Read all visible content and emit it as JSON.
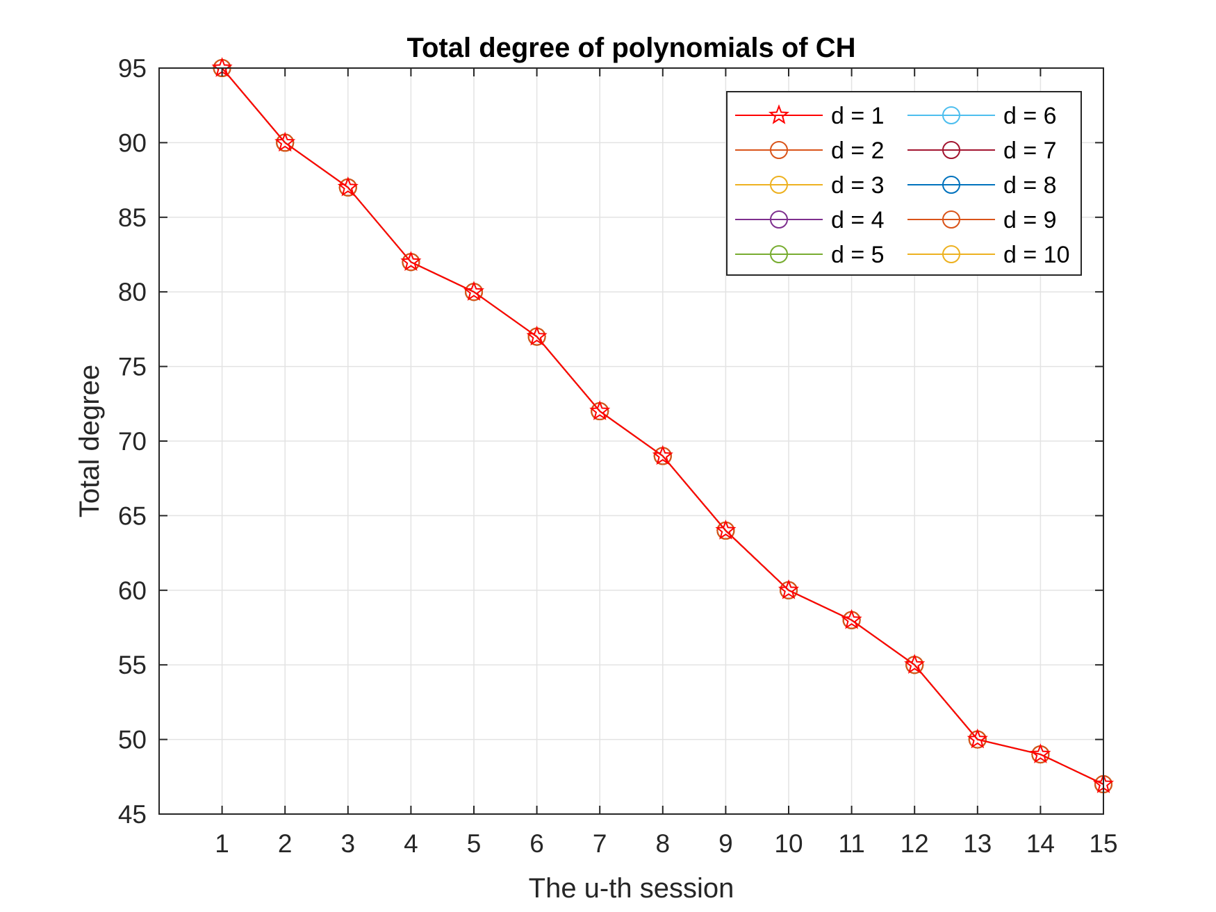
{
  "chart_data": {
    "type": "line",
    "title": "Total degree of polynomials of CH",
    "xlabel": "The u-th session",
    "ylabel": "Total degree",
    "x": [
      1,
      2,
      3,
      4,
      5,
      6,
      7,
      8,
      9,
      10,
      11,
      12,
      13,
      14,
      15
    ],
    "xlim": [
      0,
      15
    ],
    "ylim": [
      45,
      95
    ],
    "xticks": [
      1,
      2,
      3,
      4,
      5,
      6,
      7,
      8,
      9,
      10,
      11,
      12,
      13,
      14,
      15
    ],
    "yticks": [
      45,
      50,
      55,
      60,
      65,
      70,
      75,
      80,
      85,
      90,
      95
    ],
    "grid": true,
    "legend_position": "top-right",
    "legend_columns": 2,
    "series": [
      {
        "name": "d = 1",
        "marker": "star",
        "color": "#FF0000",
        "values": [
          95,
          90,
          87,
          82,
          80,
          77,
          72,
          69,
          64,
          60,
          58,
          55,
          50,
          49,
          47
        ]
      },
      {
        "name": "d = 2",
        "marker": "circle",
        "color": "#D95319",
        "values": [
          95,
          90,
          87,
          82,
          80,
          77,
          72,
          69,
          64,
          60,
          58,
          55,
          50,
          49,
          47
        ]
      },
      {
        "name": "d = 3",
        "marker": "circle",
        "color": "#EDB120",
        "values": [
          95,
          90,
          87,
          82,
          80,
          77,
          72,
          69,
          64,
          60,
          58,
          55,
          50,
          49,
          47
        ]
      },
      {
        "name": "d = 4",
        "marker": "circle",
        "color": "#7E2F8E",
        "values": [
          95,
          90,
          87,
          82,
          80,
          77,
          72,
          69,
          64,
          60,
          58,
          55,
          50,
          49,
          47
        ]
      },
      {
        "name": "d = 5",
        "marker": "circle",
        "color": "#77AC30",
        "values": [
          95,
          90,
          87,
          82,
          80,
          77,
          72,
          69,
          64,
          60,
          58,
          55,
          50,
          49,
          47
        ]
      },
      {
        "name": "d = 6",
        "marker": "circle",
        "color": "#4DBEEE",
        "values": [
          95,
          90,
          87,
          82,
          80,
          77,
          72,
          69,
          64,
          60,
          58,
          55,
          50,
          49,
          47
        ]
      },
      {
        "name": "d = 7",
        "marker": "circle",
        "color": "#A2142F",
        "values": [
          95,
          90,
          87,
          82,
          80,
          77,
          72,
          69,
          64,
          60,
          58,
          55,
          50,
          49,
          47
        ]
      },
      {
        "name": "d = 8",
        "marker": "circle",
        "color": "#0072BD",
        "values": [
          95,
          90,
          87,
          82,
          80,
          77,
          72,
          69,
          64,
          60,
          58,
          55,
          50,
          49,
          47
        ]
      },
      {
        "name": "d = 9",
        "marker": "circle",
        "color": "#D95319",
        "values": [
          95,
          90,
          87,
          82,
          80,
          77,
          72,
          69,
          64,
          60,
          58,
          55,
          50,
          49,
          47
        ]
      },
      {
        "name": "d = 10",
        "marker": "circle",
        "color": "#EDB120",
        "values": [
          95,
          90,
          87,
          82,
          80,
          77,
          72,
          69,
          64,
          60,
          58,
          55,
          50,
          49,
          47
        ]
      }
    ]
  }
}
